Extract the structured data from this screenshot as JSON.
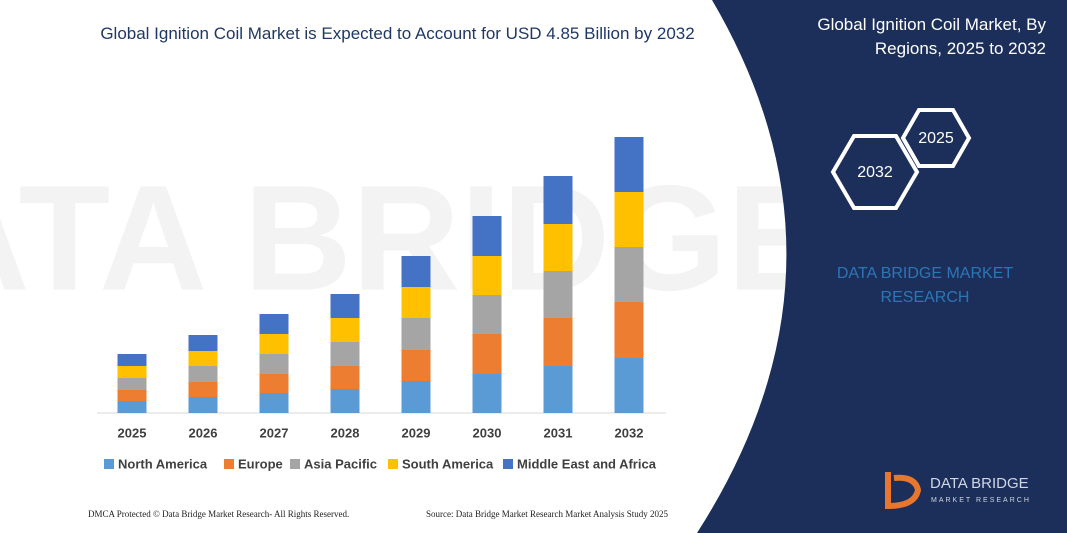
{
  "chart_data": {
    "type": "stacked_bar",
    "title": "Global Ignition Coil Market is Expected to Account for USD 4.85 Billion by 2032",
    "categories": [
      "2025",
      "2026",
      "2027",
      "2028",
      "2029",
      "2030",
      "2031",
      "2032"
    ],
    "series": [
      {
        "name": "North America",
        "color": "#5b9bd5",
        "values": [
          12,
          16,
          20,
          24,
          32,
          39,
          47,
          55
        ]
      },
      {
        "name": "Europe",
        "color": "#ed7d31",
        "values": [
          11,
          15,
          19,
          23,
          31,
          40,
          48,
          56
        ]
      },
      {
        "name": "Asia Pacific",
        "color": "#a5a5a5",
        "values": [
          12,
          16,
          20,
          24,
          32,
          39,
          47,
          55
        ]
      },
      {
        "name": "South America",
        "color": "#ffc000",
        "values": [
          12,
          15,
          20,
          24,
          31,
          39,
          47,
          55
        ]
      },
      {
        "name": "Middle East and Africa",
        "color": "#4472c4",
        "values": [
          12,
          16,
          20,
          24,
          31,
          40,
          48,
          55
        ]
      }
    ]
  },
  "panel": {
    "title": "Global Ignition Coil Market, By Regions, 2025 to 2032",
    "hex_labels": [
      "2032",
      "2025"
    ],
    "brand": "DATA BRIDGE MARKET RESEARCH",
    "logo": [
      "DATA BRIDGE",
      "MARKET RESEARCH"
    ]
  },
  "footer": [
    "DMCA Protected © Data Bridge Market Research-  All Rights Reserved.",
    "Source: Data Bridge Market Research  Market Analysis Study 2025"
  ]
}
